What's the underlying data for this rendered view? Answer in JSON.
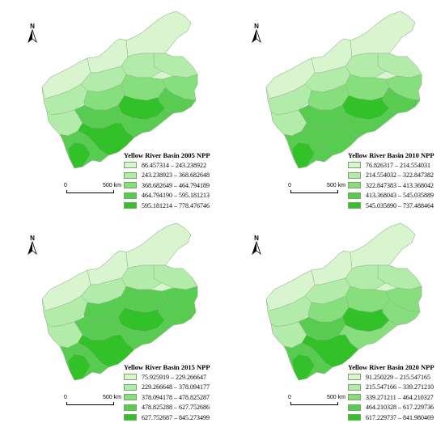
{
  "north_label": "N",
  "scale": {
    "start": "0",
    "end": "500 km"
  },
  "fill_colors": [
    "#d9f5d0",
    "#b3ebaa",
    "#87de7c",
    "#57cc50",
    "#33c12a"
  ],
  "panels": [
    {
      "title": "Yellow River Basin 2005 NPP",
      "legend": [
        "86.457314 – 243.238922",
        "243.238923 – 368.682648",
        "368.682649 – 464.794189",
        "464.794190 – 595.181213",
        "595.181214 – 778.476746"
      ]
    },
    {
      "title": "Yellow River Basin 2010 NPP",
      "legend": [
        "76.826317 – 214.554031",
        "214.554032 – 322.847382",
        "322.847383 – 413.368042",
        "413.368043 – 545.035889",
        "545.035890 – 737.488464"
      ]
    },
    {
      "title": "Yellow River Basin 2015 NPP",
      "legend": [
        "75.925919 – 229.266647",
        "229.266648 – 378.094177",
        "378.094178 – 478.825287",
        "478.825288 – 627.752686",
        "627.752687 – 845.273499"
      ]
    },
    {
      "title": "Yellow River Basin 2020 NPP",
      "legend": [
        "91.250229 – 215.547165",
        "215.547166 – 339.271210",
        "339.271211 – 464.210327",
        "464.210328 – 617.229736",
        "617.229737 – 841.980469"
      ]
    }
  ]
}
